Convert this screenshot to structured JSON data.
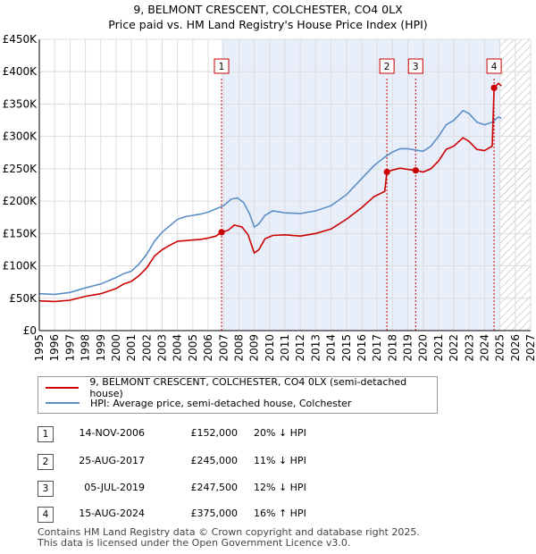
{
  "title_line1": "9, BELMONT CRESCENT, COLCHESTER, CO4 0LX",
  "title_line2": "Price paid vs. HM Land Registry's House Price Index (HPI)",
  "chart_data": {
    "type": "line",
    "title": "9, BELMONT CRESCENT, COLCHESTER, CO4 0LX",
    "subtitle": "Price paid vs. HM Land Registry's House Price Index (HPI)",
    "xlim": [
      1995,
      2027
    ],
    "ylim": [
      0,
      450000
    ],
    "x_ticks": [
      "1995",
      "1996",
      "1997",
      "1998",
      "1999",
      "2000",
      "2001",
      "2002",
      "2003",
      "2004",
      "2005",
      "2006",
      "2007",
      "2008",
      "2009",
      "2010",
      "2011",
      "2012",
      "2013",
      "2014",
      "2015",
      "2016",
      "2017",
      "2018",
      "2019",
      "2020",
      "2021",
      "2022",
      "2023",
      "2024",
      "2025",
      "2026",
      "2027"
    ],
    "y_ticks": [
      {
        "value": 0,
        "label": "£0"
      },
      {
        "value": 50000,
        "label": "£50K"
      },
      {
        "value": 100000,
        "label": "£100K"
      },
      {
        "value": 150000,
        "label": "£150K"
      },
      {
        "value": 200000,
        "label": "£200K"
      },
      {
        "value": 250000,
        "label": "£250K"
      },
      {
        "value": 300000,
        "label": "£300K"
      },
      {
        "value": 350000,
        "label": "£350K"
      },
      {
        "value": 400000,
        "label": "£400K"
      },
      {
        "value": 450000,
        "label": "£450K"
      }
    ],
    "shaded_from": 2006.87,
    "forecast_from": 2025.0,
    "series": [
      {
        "name": "9, BELMONT CRESCENT, COLCHESTER, CO4 0LX (semi-detached house)",
        "color": "#cc0000",
        "points": [
          [
            1995.0,
            46000
          ],
          [
            1996.0,
            45000
          ],
          [
            1997.0,
            47000
          ],
          [
            1998.0,
            53000
          ],
          [
            1999.0,
            57000
          ],
          [
            2000.0,
            65000
          ],
          [
            2000.5,
            72000
          ],
          [
            2001.0,
            76000
          ],
          [
            2001.5,
            85000
          ],
          [
            2002.0,
            97000
          ],
          [
            2002.5,
            115000
          ],
          [
            2003.0,
            125000
          ],
          [
            2003.5,
            132000
          ],
          [
            2004.0,
            138000
          ],
          [
            2004.5,
            139000
          ],
          [
            2005.0,
            140000
          ],
          [
            2005.5,
            141000
          ],
          [
            2006.0,
            143000
          ],
          [
            2006.5,
            146000
          ],
          [
            2006.87,
            152000
          ],
          [
            2007.3,
            155000
          ],
          [
            2007.7,
            163000
          ],
          [
            2008.2,
            160000
          ],
          [
            2008.6,
            148000
          ],
          [
            2009.0,
            120000
          ],
          [
            2009.3,
            125000
          ],
          [
            2009.7,
            142000
          ],
          [
            2010.2,
            147000
          ],
          [
            2011.0,
            148000
          ],
          [
            2012.0,
            146000
          ],
          [
            2013.0,
            150000
          ],
          [
            2014.0,
            157000
          ],
          [
            2015.0,
            172000
          ],
          [
            2016.0,
            190000
          ],
          [
            2016.8,
            207000
          ],
          [
            2017.5,
            215000
          ],
          [
            2017.64,
            245000
          ],
          [
            2018.0,
            248000
          ],
          [
            2018.5,
            251000
          ],
          [
            2019.0,
            249000
          ],
          [
            2019.51,
            247500
          ],
          [
            2020.0,
            245000
          ],
          [
            2020.5,
            250000
          ],
          [
            2021.0,
            262000
          ],
          [
            2021.5,
            280000
          ],
          [
            2022.0,
            285000
          ],
          [
            2022.6,
            298000
          ],
          [
            2023.0,
            292000
          ],
          [
            2023.5,
            280000
          ],
          [
            2024.0,
            278000
          ],
          [
            2024.5,
            285000
          ],
          [
            2024.62,
            375000
          ],
          [
            2024.9,
            382000
          ],
          [
            2025.1,
            378000
          ]
        ]
      },
      {
        "name": "HPI: Average price, semi-detached house, Colchester",
        "color": "#5b8fc7",
        "points": [
          [
            1995.0,
            57000
          ],
          [
            1996.0,
            56000
          ],
          [
            1997.0,
            59000
          ],
          [
            1998.0,
            66000
          ],
          [
            1999.0,
            72000
          ],
          [
            2000.0,
            82000
          ],
          [
            2000.5,
            88000
          ],
          [
            2001.0,
            92000
          ],
          [
            2001.5,
            103000
          ],
          [
            2002.0,
            118000
          ],
          [
            2002.5,
            138000
          ],
          [
            2003.0,
            152000
          ],
          [
            2003.5,
            162000
          ],
          [
            2004.0,
            172000
          ],
          [
            2004.5,
            176000
          ],
          [
            2005.0,
            178000
          ],
          [
            2005.5,
            180000
          ],
          [
            2006.0,
            183000
          ],
          [
            2006.5,
            188000
          ],
          [
            2007.0,
            193000
          ],
          [
            2007.5,
            203000
          ],
          [
            2007.9,
            205000
          ],
          [
            2008.3,
            198000
          ],
          [
            2008.7,
            180000
          ],
          [
            2009.0,
            160000
          ],
          [
            2009.3,
            165000
          ],
          [
            2009.7,
            178000
          ],
          [
            2010.2,
            185000
          ],
          [
            2011.0,
            182000
          ],
          [
            2012.0,
            181000
          ],
          [
            2013.0,
            185000
          ],
          [
            2014.0,
            193000
          ],
          [
            2015.0,
            210000
          ],
          [
            2016.0,
            235000
          ],
          [
            2016.8,
            255000
          ],
          [
            2017.5,
            268000
          ],
          [
            2018.0,
            276000
          ],
          [
            2018.5,
            281000
          ],
          [
            2019.0,
            281000
          ],
          [
            2019.5,
            279000
          ],
          [
            2020.0,
            277000
          ],
          [
            2020.5,
            285000
          ],
          [
            2021.0,
            300000
          ],
          [
            2021.5,
            318000
          ],
          [
            2022.0,
            325000
          ],
          [
            2022.6,
            340000
          ],
          [
            2023.0,
            335000
          ],
          [
            2023.5,
            322000
          ],
          [
            2024.0,
            318000
          ],
          [
            2024.5,
            322000
          ],
          [
            2024.9,
            330000
          ],
          [
            2025.1,
            328000
          ]
        ]
      }
    ],
    "sales": [
      {
        "n": "1",
        "x": 2006.87,
        "price": 152000
      },
      {
        "n": "2",
        "x": 2017.64,
        "price": 245000
      },
      {
        "n": "3",
        "x": 2019.51,
        "price": 247500
      },
      {
        "n": "4",
        "x": 2024.62,
        "price": 375000
      }
    ]
  },
  "legend": {
    "red_label": "9, BELMONT CRESCENT, COLCHESTER, CO4 0LX (semi-detached house)",
    "blue_label": "HPI: Average price, semi-detached house, Colchester",
    "red_color": "#cc0000",
    "blue_color": "#5b8fc7"
  },
  "sales_table": [
    {
      "n": "1",
      "date": "14-NOV-2006",
      "price": "£152,000",
      "hpi": "20% ↓ HPI"
    },
    {
      "n": "2",
      "date": "25-AUG-2017",
      "price": "£245,000",
      "hpi": "11% ↓ HPI"
    },
    {
      "n": "3",
      "date": "05-JUL-2019",
      "price": "£247,500",
      "hpi": "12% ↓ HPI"
    },
    {
      "n": "4",
      "date": "15-AUG-2024",
      "price": "£375,000",
      "hpi": "16% ↑ HPI"
    }
  ],
  "footer": {
    "line1": "Contains HM Land Registry data © Crown copyright and database right 2025.",
    "line2": "This data is licensed under the Open Government Licence v3.0."
  }
}
